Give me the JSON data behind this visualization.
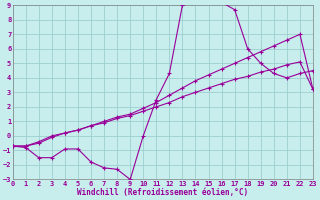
{
  "xlabel": "Windchill (Refroidissement éolien,°C)",
  "bg_color": "#c8eded",
  "line_color": "#990099",
  "grid_color": "#9ecece",
  "spine_color": "#808080",
  "xlim": [
    0,
    23
  ],
  "ylim": [
    -3,
    9
  ],
  "xticks": [
    0,
    1,
    2,
    3,
    4,
    5,
    6,
    7,
    8,
    9,
    10,
    11,
    12,
    13,
    14,
    15,
    16,
    17,
    18,
    19,
    20,
    21,
    22,
    23
  ],
  "yticks": [
    -3,
    -2,
    -1,
    0,
    1,
    2,
    3,
    4,
    5,
    6,
    7,
    8,
    9
  ],
  "line1_x": [
    0,
    1,
    2,
    3,
    4,
    5,
    6,
    7,
    8,
    9,
    10,
    11,
    12,
    13,
    14,
    15,
    16,
    17,
    18,
    19,
    20,
    21,
    22,
    23
  ],
  "line1_y": [
    -0.7,
    -0.8,
    -1.5,
    -1.5,
    -0.9,
    -0.9,
    -1.8,
    -2.2,
    -2.3,
    -3.0,
    0.0,
    2.5,
    4.3,
    9.0,
    9.2,
    9.2,
    9.2,
    8.7,
    6.0,
    5.0,
    4.3,
    4.0,
    4.3,
    4.5
  ],
  "line2_x": [
    0,
    1,
    2,
    3,
    4,
    5,
    6,
    7,
    8,
    9,
    10,
    11,
    12,
    13,
    14,
    15,
    16,
    17,
    18,
    19,
    20,
    21,
    22,
    23
  ],
  "line2_y": [
    -0.7,
    -0.7,
    -0.5,
    -0.1,
    0.2,
    0.4,
    0.7,
    1.0,
    1.3,
    1.5,
    1.9,
    2.3,
    2.8,
    3.3,
    3.8,
    4.2,
    4.6,
    5.0,
    5.4,
    5.8,
    6.2,
    6.6,
    7.0,
    3.2
  ],
  "line3_x": [
    0,
    1,
    2,
    3,
    4,
    5,
    6,
    7,
    8,
    9,
    10,
    11,
    12,
    13,
    14,
    15,
    16,
    17,
    18,
    19,
    20,
    21,
    22,
    23
  ],
  "line3_y": [
    -0.7,
    -0.7,
    -0.4,
    0.0,
    0.2,
    0.4,
    0.7,
    0.9,
    1.2,
    1.4,
    1.7,
    2.0,
    2.3,
    2.7,
    3.0,
    3.3,
    3.6,
    3.9,
    4.1,
    4.4,
    4.6,
    4.9,
    5.1,
    3.2
  ]
}
